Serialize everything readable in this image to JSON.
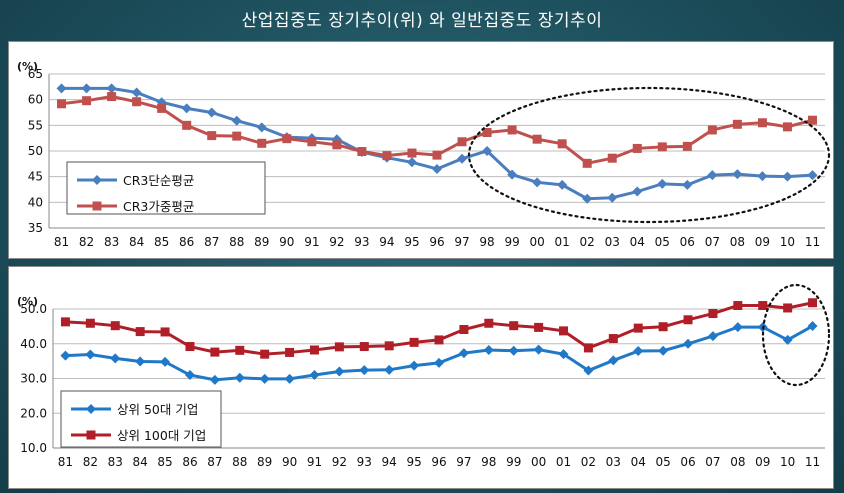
{
  "title": "산업집중도 장기추이(위) 와 일반집중도 장기추이",
  "colors": {
    "blue": "#4a7ebf",
    "red": "#c0504d"
  },
  "chart_data": [
    {
      "type": "line",
      "unit": "(%)",
      "categories": [
        "81",
        "82",
        "83",
        "84",
        "85",
        "86",
        "87",
        "88",
        "89",
        "90",
        "91",
        "92",
        "93",
        "94",
        "95",
        "96",
        "97",
        "98",
        "99",
        "00",
        "01",
        "02",
        "03",
        "04",
        "05",
        "06",
        "07",
        "08",
        "09",
        "10",
        "11"
      ],
      "ylim": [
        35,
        65
      ],
      "yticks": [
        "35",
        "40",
        "45",
        "50",
        "55",
        "60",
        "65"
      ],
      "ytick_values": [
        35,
        40,
        45,
        50,
        55,
        60,
        65
      ],
      "grid": true,
      "legend_position": "bottom-left",
      "annotation": "dotted ellipse highlighting 98-11",
      "series": [
        {
          "name": "CR3단순평균",
          "color": "#4a7ebf",
          "marker": "diamond",
          "values": [
            62.2,
            62.2,
            62.2,
            61.4,
            59.5,
            58.3,
            57.5,
            55.9,
            54.6,
            52.7,
            52.5,
            52.3,
            49.8,
            48.7,
            47.8,
            46.5,
            48.5,
            50.0,
            45.4,
            43.9,
            43.4,
            40.7,
            40.9,
            42.1,
            43.6,
            43.4,
            45.3,
            45.5,
            45.1,
            45.0,
            45.3
          ]
        },
        {
          "name": "CR3가중평균",
          "color": "#c0504d",
          "marker": "square",
          "values": [
            59.2,
            59.8,
            60.6,
            59.6,
            58.3,
            55.0,
            53.0,
            52.9,
            51.5,
            52.4,
            51.8,
            51.2,
            49.9,
            49.1,
            49.6,
            49.2,
            51.8,
            53.6,
            54.1,
            52.3,
            51.4,
            47.6,
            48.6,
            50.5,
            50.8,
            50.9,
            54.1,
            55.2,
            55.5,
            54.7,
            56.0
          ]
        }
      ]
    },
    {
      "type": "line",
      "unit": "(%)",
      "categories": [
        "81",
        "82",
        "83",
        "84",
        "85",
        "86",
        "87",
        "88",
        "89",
        "90",
        "91",
        "92",
        "93",
        "94",
        "95",
        "96",
        "97",
        "98",
        "99",
        "00",
        "01",
        "02",
        "03",
        "04",
        "05",
        "06",
        "07",
        "08",
        "09",
        "10",
        "11"
      ],
      "ylim": [
        10,
        50
      ],
      "yticks": [
        "10.0",
        "20.0",
        "30.0",
        "40.0",
        "50.0"
      ],
      "ytick_values": [
        10,
        20,
        30,
        40,
        50
      ],
      "grid": true,
      "legend_position": "bottom-left",
      "annotation": "dotted ellipse highlighting 09-11",
      "series": [
        {
          "name": "상위 50대 기업",
          "color": "#1f78c8",
          "marker": "diamond",
          "values": [
            36.6,
            36.9,
            35.8,
            34.9,
            34.8,
            31.0,
            29.6,
            30.2,
            29.9,
            29.9,
            31.0,
            32.0,
            32.4,
            32.5,
            33.7,
            34.5,
            37.3,
            38.2,
            38.0,
            38.3,
            37.0,
            32.3,
            35.2,
            37.9,
            38.0,
            40.0,
            42.2,
            44.8,
            44.8,
            41.1,
            45.1
          ]
        },
        {
          "name": "상위 100대 기업",
          "color": "#b01f28",
          "marker": "square",
          "values": [
            46.3,
            45.9,
            45.2,
            43.5,
            43.4,
            39.2,
            37.6,
            38.1,
            37.0,
            37.5,
            38.2,
            39.1,
            39.2,
            39.4,
            40.4,
            41.1,
            44.1,
            45.9,
            45.2,
            44.7,
            43.7,
            38.8,
            41.5,
            44.5,
            44.9,
            46.9,
            48.7,
            51.0,
            51.0,
            50.3,
            51.8
          ]
        }
      ]
    }
  ]
}
